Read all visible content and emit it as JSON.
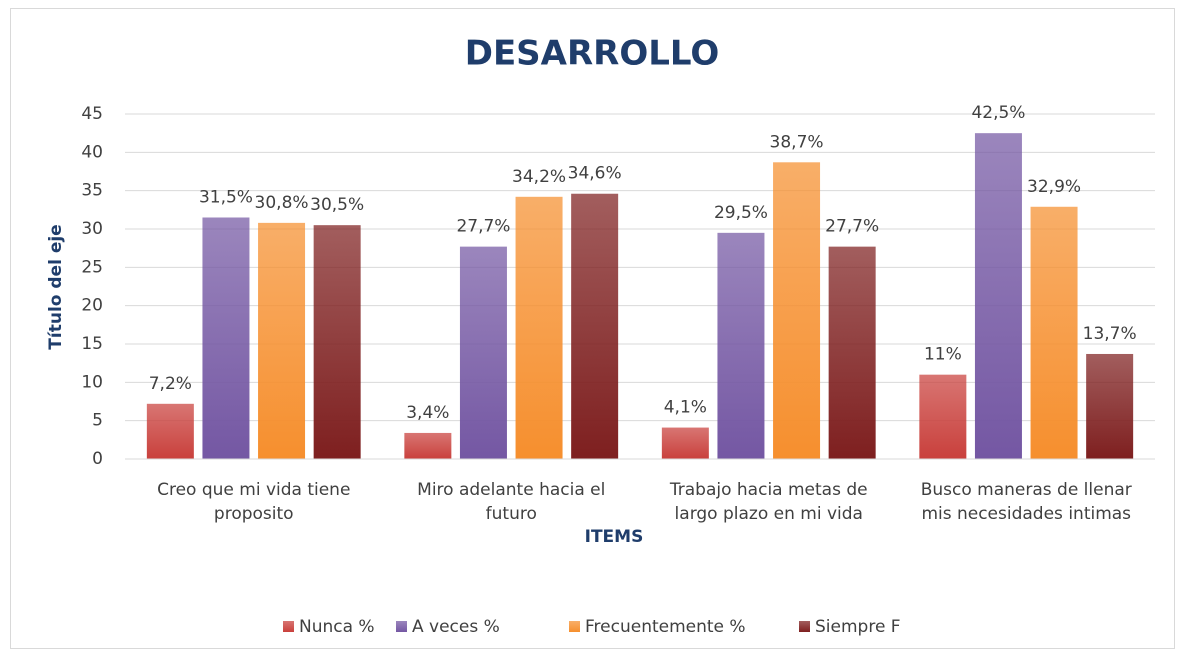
{
  "chart_data": {
    "type": "bar",
    "title": "DESARROLLO",
    "y_label": "Título del eje",
    "x_label": "ITEMS",
    "categories": [
      "Creo que mi vida tiene proposito",
      "Miro adelante hacia el futuro",
      "Trabajo hacia metas de largo plazo en mi vida",
      "Busco maneras de llenar mis necesidades intimas"
    ],
    "series": [
      {
        "name": "Nunca %",
        "color": "#c9403c",
        "values": [
          7.2,
          3.4,
          4.1,
          11
        ],
        "value_labels": [
          "7,2%",
          "3,4%",
          "4,1%",
          "11%"
        ]
      },
      {
        "name": "A veces %",
        "color": "#7457a3",
        "values": [
          31.5,
          27.7,
          29.5,
          42.5
        ],
        "value_labels": [
          "31,5%",
          "27,7%",
          "29,5%",
          "42,5%"
        ]
      },
      {
        "name": "Frecuentemente %",
        "color": "#f68f2e",
        "values": [
          30.8,
          34.2,
          38.7,
          32.9
        ],
        "value_labels": [
          "30,8%",
          "34,2%",
          "38,7%",
          "32,9%"
        ]
      },
      {
        "name": "Siempre F",
        "color": "#7e1f1f",
        "values": [
          30.5,
          34.6,
          27.7,
          13.7
        ],
        "value_labels": [
          "30,5%",
          "34,6%",
          "27,7%",
          "13,7%"
        ]
      }
    ],
    "ylim": [
      0,
      45
    ],
    "yticks": [
      0,
      5,
      10,
      15,
      20,
      25,
      30,
      35,
      40,
      45
    ],
    "grid": true,
    "legend": "bottom"
  }
}
